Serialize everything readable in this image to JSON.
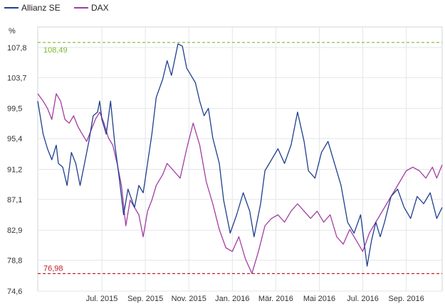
{
  "chart_data": {
    "type": "line",
    "ylabel": "%",
    "ylim": [
      74.6,
      110.6
    ],
    "y_ticks": [
      "107,8",
      "103,7",
      "99,5",
      "95,4",
      "91,2",
      "87,1",
      "82,9",
      "78,8",
      "74,6"
    ],
    "y_tick_values": [
      107.8,
      103.7,
      99.5,
      95.4,
      91.2,
      87.1,
      82.9,
      78.8,
      74.6
    ],
    "x_ticks": [
      "Jul. 2015",
      "Sep. 2015",
      "Nov. 2015",
      "Jan. 2016",
      "Mär. 2016",
      "Mai 2016",
      "Jul. 2016",
      "Sep. 2016"
    ],
    "x_tick_months": [
      3,
      5,
      7,
      9,
      11,
      13,
      15,
      17
    ],
    "xlim_months": [
      0.05,
      18.65
    ],
    "x_unit": "months since 2015-04-01",
    "grid": true,
    "legend_position": "top-left",
    "reference_lines": [
      {
        "name": "max",
        "label": "108,49",
        "value": 108.49,
        "color": "#7cb82f"
      },
      {
        "name": "min",
        "label": "76,98",
        "value": 76.98,
        "color": "#c0202a"
      }
    ],
    "series": [
      {
        "name": "Allianz SE",
        "color": "#1f3f8c",
        "x": [
          0.05,
          0.3,
          0.5,
          0.7,
          0.9,
          1.0,
          1.2,
          1.4,
          1.6,
          1.8,
          2.0,
          2.2,
          2.4,
          2.6,
          2.8,
          2.9,
          3.0,
          3.2,
          3.4,
          3.6,
          3.8,
          4.0,
          4.2,
          4.5,
          4.7,
          4.9,
          5.0,
          5.1,
          5.3,
          5.5,
          5.8,
          6.0,
          6.2,
          6.5,
          6.7,
          6.9,
          7.1,
          7.3,
          7.5,
          7.7,
          7.9,
          8.1,
          8.4,
          8.6,
          8.9,
          9.2,
          9.5,
          9.8,
          10.0,
          10.3,
          10.5,
          10.8,
          11.1,
          11.4,
          11.7,
          12.0,
          12.3,
          12.5,
          12.8,
          13.1,
          13.4,
          13.7,
          14.0,
          14.3,
          14.6,
          14.9,
          15.2,
          15.4,
          15.6,
          15.8,
          16.0,
          16.3,
          16.6,
          16.9,
          17.2,
          17.5,
          17.8,
          18.1,
          18.4,
          18.65
        ],
        "y": [
          100.5,
          96.0,
          94.0,
          92.5,
          94.5,
          92.0,
          91.5,
          89.0,
          93.5,
          92.0,
          89.0,
          92.0,
          95.0,
          98.5,
          99.0,
          100.5,
          98.0,
          96.0,
          100.5,
          94.5,
          90.0,
          85.0,
          88.5,
          86.0,
          89.0,
          88.0,
          90.0,
          92.0,
          96.0,
          101.0,
          103.5,
          106.0,
          104.0,
          108.3,
          108.0,
          105.0,
          104.0,
          103.0,
          100.5,
          98.5,
          99.5,
          95.5,
          92.0,
          87.0,
          82.5,
          85.0,
          88.0,
          85.5,
          82.0,
          86.5,
          91.0,
          92.5,
          94.0,
          92.0,
          94.5,
          99.0,
          95.0,
          91.0,
          90.0,
          93.5,
          95.0,
          92.0,
          89.0,
          84.0,
          82.5,
          85.0,
          78.0,
          81.5,
          84.0,
          82.0,
          84.0,
          87.5,
          88.5,
          86.0,
          84.5,
          87.5,
          86.5,
          88.0,
          84.5,
          86.0
        ]
      },
      {
        "name": "DAX",
        "color": "#a23da2",
        "x": [
          0.05,
          0.3,
          0.5,
          0.7,
          0.9,
          1.1,
          1.3,
          1.5,
          1.7,
          1.9,
          2.1,
          2.3,
          2.5,
          2.7,
          2.9,
          3.1,
          3.3,
          3.5,
          3.7,
          3.9,
          4.1,
          4.3,
          4.5,
          4.7,
          4.9,
          5.1,
          5.3,
          5.5,
          5.8,
          6.0,
          6.3,
          6.6,
          6.9,
          7.2,
          7.5,
          7.8,
          8.1,
          8.4,
          8.7,
          9.0,
          9.3,
          9.6,
          9.9,
          10.2,
          10.5,
          10.8,
          11.1,
          11.4,
          11.7,
          12.0,
          12.3,
          12.6,
          12.9,
          13.2,
          13.5,
          13.8,
          14.1,
          14.4,
          14.7,
          15.0,
          15.3,
          15.5,
          15.8,
          16.1,
          16.4,
          16.7,
          17.0,
          17.3,
          17.6,
          17.9,
          18.2,
          18.4,
          18.65
        ],
        "y": [
          101.5,
          100.5,
          99.5,
          98.0,
          101.5,
          100.5,
          98.0,
          97.5,
          98.5,
          97.0,
          96.0,
          95.0,
          96.5,
          98.0,
          99.0,
          97.5,
          95.5,
          94.5,
          92.0,
          89.0,
          83.5,
          87.0,
          86.0,
          85.0,
          82.0,
          85.5,
          87.0,
          89.0,
          90.5,
          92.0,
          91.0,
          90.0,
          94.0,
          97.5,
          94.5,
          89.5,
          86.5,
          83.0,
          80.5,
          80.0,
          82.0,
          79.0,
          77.0,
          80.0,
          83.5,
          84.5,
          85.0,
          84.0,
          85.5,
          86.5,
          85.5,
          84.5,
          85.5,
          84.0,
          85.0,
          82.0,
          81.0,
          83.0,
          81.5,
          80.0,
          82.5,
          83.5,
          85.0,
          86.5,
          88.0,
          89.5,
          91.0,
          91.5,
          91.0,
          90.0,
          91.5,
          90.0,
          91.8
        ]
      }
    ]
  }
}
